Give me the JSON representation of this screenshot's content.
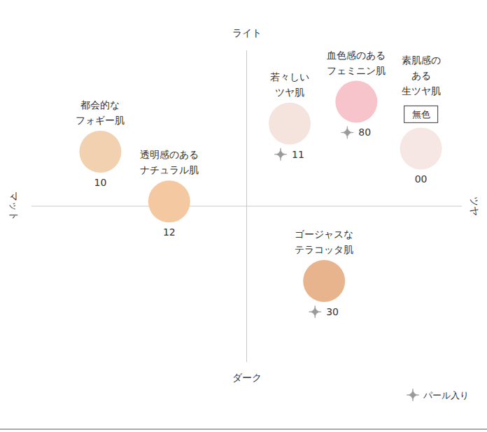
{
  "chart_data": {
    "type": "scatter",
    "xlim": [
      -1,
      1
    ],
    "ylim": [
      -1,
      1
    ],
    "xticks": [],
    "yticks": [],
    "tick_labels": false,
    "axis_labels": {
      "left": "マット",
      "right": "ツヤ",
      "top": "ライト",
      "bottom": "ダーク"
    },
    "pearl_label": "パール入り",
    "points": [
      {
        "label": "10",
        "description": [
          "都会的な",
          "フォギー肌"
        ],
        "x": -0.68,
        "y": 0.35,
        "pearl": false,
        "color": "#f2d1b0"
      },
      {
        "label": "12",
        "description": [
          "透明感のある",
          "ナチュラル肌"
        ],
        "x": -0.36,
        "y": 0.03,
        "pearl": false,
        "color": "#f4c9a2"
      },
      {
        "label": "11",
        "description": [
          "若々しい",
          "ツヤ肌"
        ],
        "x": 0.2,
        "y": 0.53,
        "pearl": true,
        "color": "#f5e4de"
      },
      {
        "label": "80",
        "description": [
          "血色感のある",
          "フェミニン肌"
        ],
        "x": 0.51,
        "y": 0.67,
        "pearl": true,
        "color": "#f6c4ca"
      },
      {
        "label": "00",
        "description": [
          "素肌感の",
          "ある",
          "生ツヤ肌"
        ],
        "badge": "無色",
        "x": 0.81,
        "y": 0.37,
        "pearl": false,
        "color": "#f6e6e4"
      },
      {
        "label": "30",
        "description": [
          "ゴージャスな",
          "テラコッタ肌"
        ],
        "x": 0.36,
        "y": -0.48,
        "pearl": true,
        "color": "#e8b48e"
      }
    ]
  }
}
